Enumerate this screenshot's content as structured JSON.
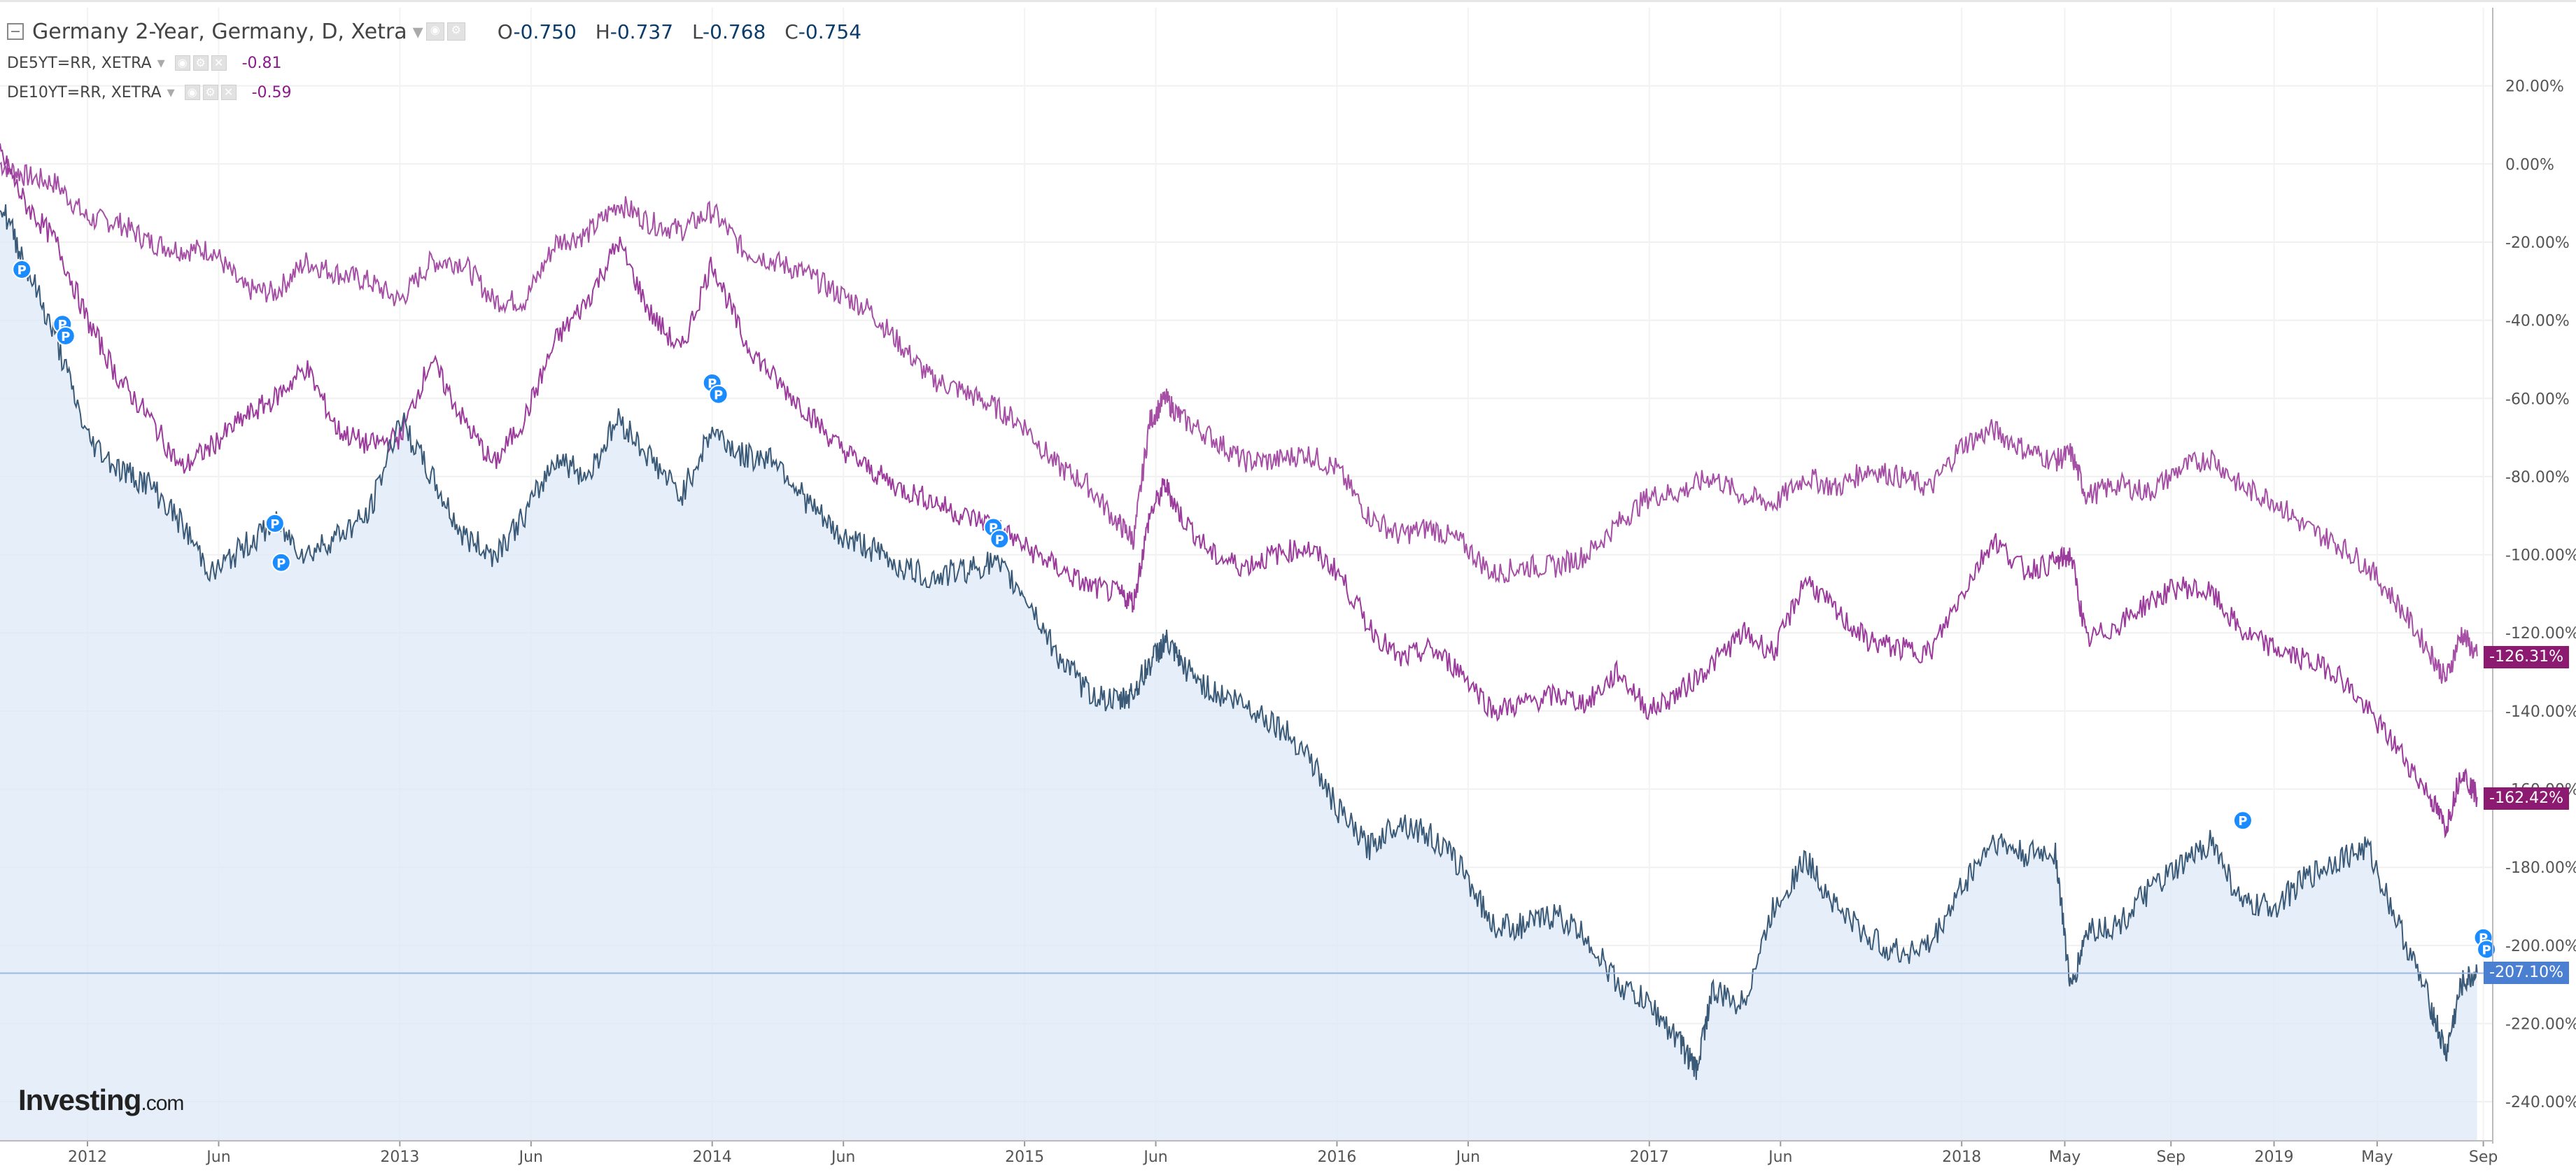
{
  "header": {
    "main_title": "Germany 2-Year, Germany, D, Xetra",
    "ohlc": [
      {
        "k": "O",
        "v": "-0.750"
      },
      {
        "k": "H",
        "v": "-0.737"
      },
      {
        "k": "L",
        "v": "-0.768"
      },
      {
        "k": "C",
        "v": "-0.754"
      }
    ],
    "series2_title": "DE5YT=RR, XETRA",
    "series2_value": "-0.81",
    "series3_title": "DE10YT=RR, XETRA",
    "series3_value": "-0.59"
  },
  "price_tags": {
    "de10": "-126.31%",
    "de5": "-162.42%",
    "de2": "-207.10%"
  },
  "logo": {
    "main": "Investing",
    "domain": ".com"
  },
  "colors": {
    "de2_line": "#3a5a78",
    "de2_fill": "#dbe8f6",
    "de5_line": "#9b3b9b",
    "de10_line": "#a54fa5",
    "tag_purple": "#8b1a70",
    "tag_blue": "#4a7fd1",
    "marker": "#1a8cff"
  },
  "chart_data": {
    "type": "line",
    "title": "Germany 2-Year, Germany, D, Xetra",
    "x_ticks": [
      "2012",
      "Jun",
      "2013",
      "Jun",
      "2014",
      "Jun",
      "2015",
      "Jun",
      "2016",
      "Jun",
      "2017",
      "Jun",
      "2018",
      "May",
      "Sep",
      "2019",
      "May",
      "Sep"
    ],
    "y_ticks": [
      "20.00%",
      "0.00%",
      "-20.00%",
      "-40.00%",
      "-60.00%",
      "-80.00%",
      "-100.00%",
      "-120.00%",
      "-140.00%",
      "-160.00%",
      "-180.00%",
      "-200.00%",
      "-220.00%",
      "-240.00%"
    ],
    "ylim": [
      -250,
      40
    ],
    "xlim": [
      2011.72,
      2019.7
    ],
    "series": [
      {
        "name": "DE10YT=RR, XETRA",
        "last": -126.31,
        "points": [
          [
            2011.72,
            0
          ],
          [
            2011.8,
            -3
          ],
          [
            2011.9,
            -5
          ],
          [
            2012.0,
            -14
          ],
          [
            2012.1,
            -15
          ],
          [
            2012.2,
            -20
          ],
          [
            2012.3,
            -22
          ],
          [
            2012.4,
            -22
          ],
          [
            2012.5,
            -32
          ],
          [
            2012.6,
            -33
          ],
          [
            2012.7,
            -25
          ],
          [
            2012.8,
            -28
          ],
          [
            2012.9,
            -30
          ],
          [
            2013.0,
            -35
          ],
          [
            2013.1,
            -25
          ],
          [
            2013.2,
            -25
          ],
          [
            2013.3,
            -35
          ],
          [
            2013.4,
            -35
          ],
          [
            2013.5,
            -20
          ],
          [
            2013.6,
            -18
          ],
          [
            2013.7,
            -10
          ],
          [
            2013.8,
            -15
          ],
          [
            2013.9,
            -17
          ],
          [
            2014.0,
            -12
          ],
          [
            2014.1,
            -22
          ],
          [
            2014.2,
            -25
          ],
          [
            2014.3,
            -28
          ],
          [
            2014.4,
            -33
          ],
          [
            2014.5,
            -37
          ],
          [
            2014.6,
            -46
          ],
          [
            2014.7,
            -55
          ],
          [
            2014.8,
            -58
          ],
          [
            2014.9,
            -62
          ],
          [
            2015.0,
            -67
          ],
          [
            2015.1,
            -77
          ],
          [
            2015.2,
            -82
          ],
          [
            2015.3,
            -92
          ],
          [
            2015.35,
            -96
          ],
          [
            2015.4,
            -66
          ],
          [
            2015.45,
            -60
          ],
          [
            2015.5,
            -65
          ],
          [
            2015.6,
            -70
          ],
          [
            2015.7,
            -76
          ],
          [
            2015.8,
            -76
          ],
          [
            2015.9,
            -74
          ],
          [
            2016.0,
            -78
          ],
          [
            2016.1,
            -90
          ],
          [
            2016.2,
            -95
          ],
          [
            2016.3,
            -93
          ],
          [
            2016.4,
            -97
          ],
          [
            2016.5,
            -105
          ],
          [
            2016.6,
            -103
          ],
          [
            2016.7,
            -103
          ],
          [
            2016.8,
            -100
          ],
          [
            2016.9,
            -92
          ],
          [
            2017.0,
            -85
          ],
          [
            2017.1,
            -84
          ],
          [
            2017.2,
            -80
          ],
          [
            2017.3,
            -85
          ],
          [
            2017.4,
            -87
          ],
          [
            2017.5,
            -80
          ],
          [
            2017.6,
            -83
          ],
          [
            2017.7,
            -78
          ],
          [
            2017.8,
            -80
          ],
          [
            2017.9,
            -83
          ],
          [
            2018.0,
            -72
          ],
          [
            2018.1,
            -68
          ],
          [
            2018.2,
            -73
          ],
          [
            2018.3,
            -76
          ],
          [
            2018.35,
            -74
          ],
          [
            2018.4,
            -85
          ],
          [
            2018.5,
            -82
          ],
          [
            2018.6,
            -84
          ],
          [
            2018.7,
            -78
          ],
          [
            2018.8,
            -75
          ],
          [
            2018.9,
            -83
          ],
          [
            2019.0,
            -86
          ],
          [
            2019.1,
            -93
          ],
          [
            2019.2,
            -97
          ],
          [
            2019.3,
            -103
          ],
          [
            2019.4,
            -113
          ],
          [
            2019.5,
            -125
          ],
          [
            2019.55,
            -132
          ],
          [
            2019.6,
            -120
          ],
          [
            2019.65,
            -126
          ]
        ]
      },
      {
        "name": "DE5YT=RR, XETRA",
        "last": -162.42,
        "points": [
          [
            2011.72,
            3
          ],
          [
            2011.8,
            -10
          ],
          [
            2011.9,
            -20
          ],
          [
            2012.0,
            -40
          ],
          [
            2012.1,
            -55
          ],
          [
            2012.2,
            -65
          ],
          [
            2012.3,
            -78
          ],
          [
            2012.4,
            -72
          ],
          [
            2012.5,
            -65
          ],
          [
            2012.6,
            -60
          ],
          [
            2012.7,
            -52
          ],
          [
            2012.8,
            -68
          ],
          [
            2012.9,
            -72
          ],
          [
            2013.0,
            -70
          ],
          [
            2013.1,
            -50
          ],
          [
            2013.2,
            -65
          ],
          [
            2013.3,
            -77
          ],
          [
            2013.4,
            -65
          ],
          [
            2013.5,
            -45
          ],
          [
            2013.6,
            -35
          ],
          [
            2013.7,
            -20
          ],
          [
            2013.8,
            -38
          ],
          [
            2013.9,
            -48
          ],
          [
            2014.0,
            -25
          ],
          [
            2014.1,
            -45
          ],
          [
            2014.2,
            -55
          ],
          [
            2014.3,
            -63
          ],
          [
            2014.4,
            -72
          ],
          [
            2014.5,
            -78
          ],
          [
            2014.6,
            -83
          ],
          [
            2014.7,
            -86
          ],
          [
            2014.8,
            -90
          ],
          [
            2014.9,
            -92
          ],
          [
            2015.0,
            -98
          ],
          [
            2015.1,
            -103
          ],
          [
            2015.2,
            -108
          ],
          [
            2015.3,
            -110
          ],
          [
            2015.35,
            -112
          ],
          [
            2015.4,
            -90
          ],
          [
            2015.45,
            -82
          ],
          [
            2015.5,
            -90
          ],
          [
            2015.6,
            -100
          ],
          [
            2015.7,
            -103
          ],
          [
            2015.8,
            -100
          ],
          [
            2015.9,
            -98
          ],
          [
            2016.0,
            -104
          ],
          [
            2016.1,
            -118
          ],
          [
            2016.2,
            -127
          ],
          [
            2016.3,
            -124
          ],
          [
            2016.4,
            -130
          ],
          [
            2016.5,
            -140
          ],
          [
            2016.6,
            -138
          ],
          [
            2016.7,
            -136
          ],
          [
            2016.8,
            -138
          ],
          [
            2016.9,
            -130
          ],
          [
            2017.0,
            -140
          ],
          [
            2017.1,
            -135
          ],
          [
            2017.2,
            -128
          ],
          [
            2017.3,
            -120
          ],
          [
            2017.4,
            -125
          ],
          [
            2017.5,
            -106
          ],
          [
            2017.6,
            -115
          ],
          [
            2017.7,
            -122
          ],
          [
            2017.8,
            -124
          ],
          [
            2017.9,
            -125
          ],
          [
            2018.0,
            -110
          ],
          [
            2018.1,
            -96
          ],
          [
            2018.2,
            -104
          ],
          [
            2018.3,
            -102
          ],
          [
            2018.35,
            -100
          ],
          [
            2018.4,
            -122
          ],
          [
            2018.5,
            -118
          ],
          [
            2018.6,
            -112
          ],
          [
            2018.7,
            -108
          ],
          [
            2018.8,
            -110
          ],
          [
            2018.9,
            -120
          ],
          [
            2019.0,
            -124
          ],
          [
            2019.1,
            -127
          ],
          [
            2019.2,
            -130
          ],
          [
            2019.3,
            -140
          ],
          [
            2019.4,
            -150
          ],
          [
            2019.5,
            -162
          ],
          [
            2019.55,
            -170
          ],
          [
            2019.6,
            -155
          ],
          [
            2019.65,
            -162
          ]
        ]
      },
      {
        "name": "Germany 2-Year",
        "last": -207.1,
        "points": [
          [
            2011.72,
            -10
          ],
          [
            2011.8,
            -25
          ],
          [
            2011.9,
            -45
          ],
          [
            2012.0,
            -70
          ],
          [
            2012.1,
            -78
          ],
          [
            2012.2,
            -82
          ],
          [
            2012.3,
            -92
          ],
          [
            2012.4,
            -105
          ],
          [
            2012.5,
            -98
          ],
          [
            2012.6,
            -92
          ],
          [
            2012.7,
            -100
          ],
          [
            2012.8,
            -95
          ],
          [
            2012.9,
            -90
          ],
          [
            2013.0,
            -65
          ],
          [
            2013.1,
            -80
          ],
          [
            2013.2,
            -95
          ],
          [
            2013.3,
            -100
          ],
          [
            2013.4,
            -90
          ],
          [
            2013.5,
            -75
          ],
          [
            2013.6,
            -80
          ],
          [
            2013.7,
            -65
          ],
          [
            2013.8,
            -75
          ],
          [
            2013.9,
            -85
          ],
          [
            2014.0,
            -68
          ],
          [
            2014.1,
            -75
          ],
          [
            2014.2,
            -75
          ],
          [
            2014.3,
            -86
          ],
          [
            2014.4,
            -95
          ],
          [
            2014.5,
            -98
          ],
          [
            2014.6,
            -103
          ],
          [
            2014.7,
            -106
          ],
          [
            2014.8,
            -104
          ],
          [
            2014.9,
            -102
          ],
          [
            2015.0,
            -110
          ],
          [
            2015.1,
            -125
          ],
          [
            2015.2,
            -135
          ],
          [
            2015.3,
            -138
          ],
          [
            2015.35,
            -135
          ],
          [
            2015.4,
            -128
          ],
          [
            2015.45,
            -122
          ],
          [
            2015.5,
            -128
          ],
          [
            2015.6,
            -135
          ],
          [
            2015.7,
            -138
          ],
          [
            2015.8,
            -143
          ],
          [
            2015.9,
            -150
          ],
          [
            2016.0,
            -165
          ],
          [
            2016.1,
            -175
          ],
          [
            2016.2,
            -168
          ],
          [
            2016.3,
            -172
          ],
          [
            2016.4,
            -180
          ],
          [
            2016.5,
            -195
          ],
          [
            2016.6,
            -195
          ],
          [
            2016.7,
            -192
          ],
          [
            2016.8,
            -198
          ],
          [
            2016.9,
            -210
          ],
          [
            2017.0,
            -215
          ],
          [
            2017.1,
            -225
          ],
          [
            2017.15,
            -232
          ],
          [
            2017.2,
            -212
          ],
          [
            2017.3,
            -215
          ],
          [
            2017.4,
            -190
          ],
          [
            2017.5,
            -178
          ],
          [
            2017.6,
            -190
          ],
          [
            2017.7,
            -198
          ],
          [
            2017.8,
            -202
          ],
          [
            2017.9,
            -200
          ],
          [
            2018.0,
            -185
          ],
          [
            2018.1,
            -173
          ],
          [
            2018.2,
            -177
          ],
          [
            2018.3,
            -176
          ],
          [
            2018.35,
            -212
          ],
          [
            2018.4,
            -196
          ],
          [
            2018.5,
            -195
          ],
          [
            2018.6,
            -186
          ],
          [
            2018.7,
            -180
          ],
          [
            2018.8,
            -173
          ],
          [
            2018.9,
            -190
          ],
          [
            2019.0,
            -190
          ],
          [
            2019.1,
            -183
          ],
          [
            2019.2,
            -178
          ],
          [
            2019.3,
            -175
          ],
          [
            2019.4,
            -195
          ],
          [
            2019.5,
            -215
          ],
          [
            2019.55,
            -228
          ],
          [
            2019.6,
            -210
          ],
          [
            2019.65,
            -207
          ]
        ]
      }
    ],
    "markers": [
      [
        2011.79,
        -27
      ],
      [
        2011.92,
        -41
      ],
      [
        2011.93,
        -44
      ],
      [
        2012.6,
        -92
      ],
      [
        2012.62,
        -102
      ],
      [
        2014.0,
        -56
      ],
      [
        2014.02,
        -59
      ],
      [
        2014.9,
        -93
      ],
      [
        2014.92,
        -96
      ],
      [
        2018.9,
        -168
      ],
      [
        2019.67,
        -198
      ],
      [
        2019.68,
        -201
      ]
    ],
    "marker_label": "P"
  }
}
